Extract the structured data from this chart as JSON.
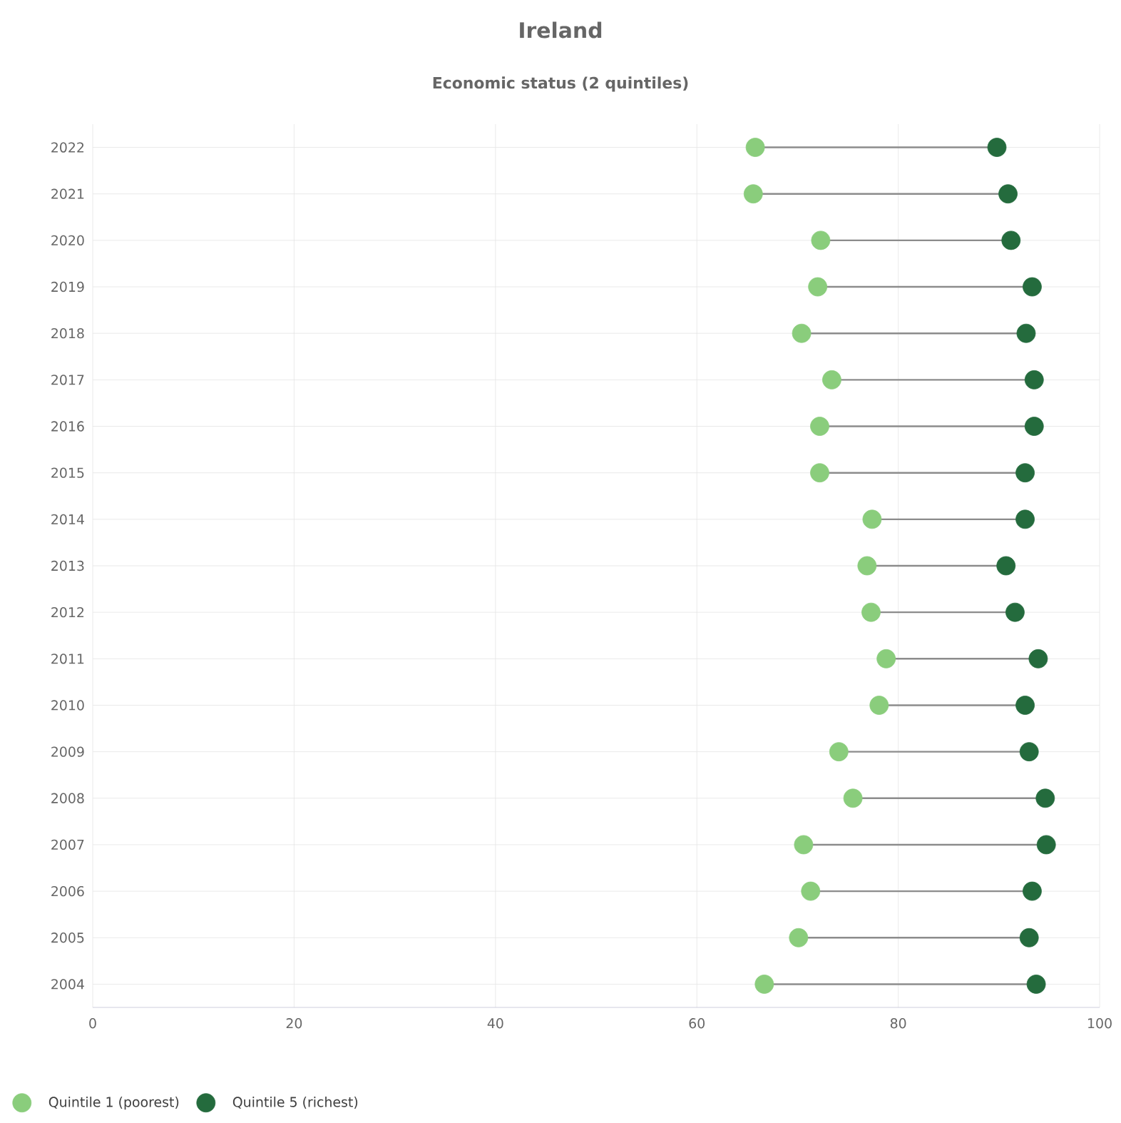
{
  "chart_data": {
    "type": "scatter",
    "orientation": "horizontal",
    "title": "Ireland",
    "subtitle": "Economic status (2 quintiles)",
    "categories": [
      "2022",
      "2021",
      "2020",
      "2019",
      "2018",
      "2017",
      "2016",
      "2015",
      "2014",
      "2013",
      "2012",
      "2011",
      "2010",
      "2009",
      "2008",
      "2007",
      "2006",
      "2005",
      "2004"
    ],
    "series": [
      {
        "name": "Quintile 1 (poorest)",
        "color": "#8acd7c",
        "values": [
          65.8,
          65.6,
          72.3,
          72.0,
          70.4,
          73.4,
          72.2,
          72.2,
          77.4,
          76.9,
          77.3,
          78.8,
          78.1,
          74.1,
          75.5,
          70.6,
          71.3,
          70.1,
          66.7
        ]
      },
      {
        "name": "Quintile 5 (richest)",
        "color": "#246b3d",
        "values": [
          89.8,
          90.9,
          91.2,
          93.3,
          92.7,
          93.5,
          93.5,
          92.6,
          92.6,
          90.7,
          91.6,
          93.9,
          92.6,
          93.0,
          94.6,
          94.7,
          93.3,
          93.0,
          93.7
        ]
      }
    ],
    "xlim": [
      0,
      100
    ],
    "xticks": [
      0,
      20,
      40,
      60,
      80,
      100
    ],
    "grid": true,
    "legend": "bottom left",
    "marker": "circle"
  }
}
